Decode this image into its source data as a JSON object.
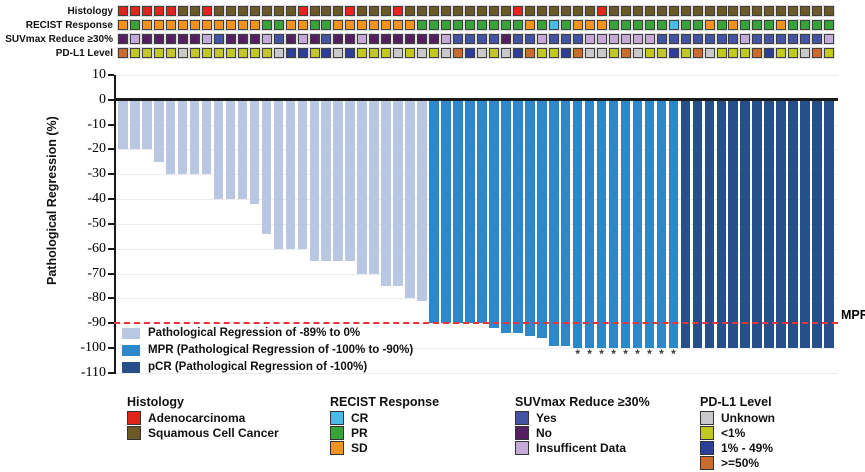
{
  "palette": {
    "adeno": "#E1251B",
    "squam": "#6B5A27",
    "cr": "#47BCEA",
    "pr": "#37A437",
    "sd": "#F6921E",
    "suv_yes": "#4553A5",
    "suv_no": "#571F63",
    "suv_insuf": "#C4A9D9",
    "pdl1_unknown": "#C9C9CB",
    "pdl1_lt1": "#C2C822",
    "pdl1_mid": "#2C3E99",
    "pdl1_ge50": "#C96B2D",
    "bar_light": "#B9C7E2",
    "bar_mpr": "#2E87C9",
    "bar_pcr": "#27508A",
    "threshold_red": "#EC3438"
  },
  "tracks": {
    "rows": [
      {
        "label": "Histology",
        "map": {
          "A": "adeno",
          "S": "squam"
        },
        "codes": "AAAAASSASSSSSSSASSSASSSASSSSSSSSSASSSSSSASSSSSSSSSSSSSSSSSSS"
      },
      {
        "label": "RECIST Response",
        "map": {
          "O": "sd",
          "G": "pr",
          "C": "cr"
        },
        "codes": "OGOOOOOOOOOOGGOOGGOOOOOOOGGGGGGGGGOGCGOOOGGGGGCGGOGOGGGOGGGG"
      },
      {
        "label": "SUVmax Reduce ≥30%",
        "map": {
          "P": "suv_no",
          "L": "suv_insuf",
          "U": "suv_yes"
        },
        "codes": "PLPPPPPLUPPPLUPLPUPPLPPPPPPLUUUUPUULUUULLLLLLUUUUUUULUUUUUUL"
      },
      {
        "label": "PD-L1 Level",
        "map": {
          "G": "pdl1_unknown",
          "Y": "pdl1_lt1",
          "N": "pdl1_mid",
          "R": "pdl1_ge50"
        },
        "codes": "RYYYYGYYYYYYYGNNYNGNYYYGYGYGRNGYGNRYYNRGGYRGYYNYRGYYYRNYYGRY"
      }
    ]
  },
  "chart_data": {
    "type": "bar",
    "title": "",
    "ylabel": "Pathological Regression (%)",
    "ylim": [
      -110,
      10
    ],
    "yticks": [
      10,
      0,
      -10,
      -20,
      -30,
      -40,
      -50,
      -60,
      -70,
      -80,
      -90,
      -100,
      -110
    ],
    "grid": "horizontal",
    "n_patients": 60,
    "values": [
      -20,
      -20,
      -20,
      -25,
      -30,
      -30,
      -30,
      -30,
      -40,
      -40,
      -40,
      -42,
      -54,
      -60,
      -60,
      -60,
      -65,
      -65,
      -65,
      -65,
      -70,
      -70,
      -75,
      -75,
      -80,
      -81,
      -90,
      -90,
      -90,
      -90,
      -90,
      -92,
      -94,
      -94,
      -95,
      -96,
      -99,
      -99,
      -100,
      -100,
      -100,
      -100,
      -100,
      -100,
      -100,
      -100,
      -100,
      -100,
      -100,
      -100,
      -100,
      -100,
      -100,
      -100,
      -100,
      -100,
      -100,
      -100,
      -100,
      -100
    ],
    "sections": [
      {
        "name": "Pathological Regression of -89% to 0%",
        "color_key": "bar_light",
        "from": 1,
        "to": 26
      },
      {
        "name": "MPR (Pathological Regression of -100% to -90%)",
        "color_key": "bar_mpr",
        "from": 27,
        "to": 47
      },
      {
        "name": "pCR (Pathological Regression of -100%)",
        "color_key": "bar_pcr",
        "from": 48,
        "to": 60
      }
    ],
    "threshold_line": {
      "value": -90,
      "label": "MPR",
      "style": "dashed",
      "color": "#EC3438"
    },
    "asterisk_columns": [
      39,
      40,
      41,
      42,
      43,
      44,
      45,
      46,
      47
    ]
  },
  "legend": {
    "groups": [
      {
        "title": "Histology",
        "items": [
          {
            "label": "Adenocarcinoma",
            "color_key": "adeno"
          },
          {
            "label": "Squamous Cell Cancer",
            "color_key": "squam"
          }
        ]
      },
      {
        "title": "RECIST Response",
        "items": [
          {
            "label": "CR",
            "color_key": "cr"
          },
          {
            "label": "PR",
            "color_key": "pr"
          },
          {
            "label": "SD",
            "color_key": "sd"
          }
        ]
      },
      {
        "title": "SUVmax Reduce ≥30%",
        "items": [
          {
            "label": "Yes",
            "color_key": "suv_yes"
          },
          {
            "label": "No",
            "color_key": "suv_no"
          },
          {
            "label": "Insufficent Data",
            "color_key": "suv_insuf"
          }
        ]
      },
      {
        "title": "PD-L1 Level",
        "items": [
          {
            "label": "Unknown",
            "color_key": "pdl1_unknown"
          },
          {
            "label": "<1%",
            "color_key": "pdl1_lt1"
          },
          {
            "label": "1% - 49%",
            "color_key": "pdl1_mid"
          },
          {
            "label": ">=50%",
            "color_key": "pdl1_ge50"
          }
        ]
      }
    ]
  }
}
